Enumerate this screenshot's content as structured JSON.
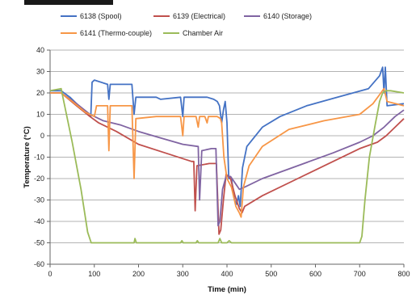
{
  "chart_data": {
    "type": "line",
    "title": "",
    "xlabel": "Time (min)",
    "ylabel": "Temperature (°C)",
    "xlim": [
      0,
      800
    ],
    "ylim": [
      -60,
      40
    ],
    "xticks": [
      0,
      100,
      200,
      300,
      400,
      500,
      600,
      700,
      800
    ],
    "yticks": [
      -60,
      -50,
      -40,
      -30,
      -20,
      -10,
      0,
      10,
      20,
      30,
      40
    ],
    "grid": "horizontal",
    "legend_position": "top",
    "series": [
      {
        "name": "6138 (Spool)",
        "color": "#4472C4",
        "points": [
          [
            0,
            21
          ],
          [
            25,
            21
          ],
          [
            45,
            18
          ],
          [
            70,
            13
          ],
          [
            92,
            9
          ],
          [
            95,
            25
          ],
          [
            100,
            26
          ],
          [
            130,
            24
          ],
          [
            133,
            17
          ],
          [
            136,
            24
          ],
          [
            185,
            24
          ],
          [
            190,
            10
          ],
          [
            194,
            18
          ],
          [
            240,
            18
          ],
          [
            250,
            17
          ],
          [
            295,
            18
          ],
          [
            300,
            9
          ],
          [
            303,
            18
          ],
          [
            355,
            18
          ],
          [
            370,
            17
          ],
          [
            378,
            16
          ],
          [
            383,
            14
          ],
          [
            388,
            6
          ],
          [
            392,
            12
          ],
          [
            396,
            16
          ],
          [
            400,
            6
          ],
          [
            404,
            -20
          ],
          [
            410,
            -20
          ],
          [
            417,
            -30
          ],
          [
            422,
            -32
          ],
          [
            426,
            -28
          ],
          [
            430,
            -33
          ],
          [
            435,
            -15
          ],
          [
            445,
            -5
          ],
          [
            480,
            4
          ],
          [
            520,
            9
          ],
          [
            580,
            14
          ],
          [
            650,
            18
          ],
          [
            720,
            22
          ],
          [
            745,
            28
          ],
          [
            752,
            32
          ],
          [
            755,
            20
          ],
          [
            758,
            32
          ],
          [
            762,
            14
          ],
          [
            800,
            15
          ]
        ]
      },
      {
        "name": "6139 (Electrical)",
        "color": "#C0504D",
        "points": [
          [
            0,
            20
          ],
          [
            25,
            20
          ],
          [
            60,
            14
          ],
          [
            90,
            9
          ],
          [
            110,
            6
          ],
          [
            150,
            2
          ],
          [
            200,
            -4
          ],
          [
            260,
            -8
          ],
          [
            320,
            -12
          ],
          [
            325,
            -12
          ],
          [
            328,
            -35
          ],
          [
            332,
            -14
          ],
          [
            360,
            -13
          ],
          [
            376,
            -13
          ],
          [
            382,
            -46
          ],
          [
            386,
            -44
          ],
          [
            392,
            -30
          ],
          [
            398,
            -18
          ],
          [
            408,
            -20
          ],
          [
            418,
            -28
          ],
          [
            428,
            -34
          ],
          [
            434,
            -36
          ],
          [
            440,
            -33
          ],
          [
            480,
            -28
          ],
          [
            560,
            -20
          ],
          [
            640,
            -12
          ],
          [
            700,
            -6
          ],
          [
            740,
            -3
          ],
          [
            760,
            0
          ],
          [
            780,
            4
          ],
          [
            800,
            8
          ]
        ]
      },
      {
        "name": "6140 (Storage)",
        "color": "#8064A2",
        "points": [
          [
            0,
            20
          ],
          [
            25,
            20
          ],
          [
            60,
            15
          ],
          [
            90,
            10
          ],
          [
            120,
            7
          ],
          [
            160,
            5
          ],
          [
            200,
            2
          ],
          [
            250,
            -1
          ],
          [
            300,
            -4
          ],
          [
            335,
            -5
          ],
          [
            338,
            -30
          ],
          [
            343,
            -7
          ],
          [
            365,
            -6
          ],
          [
            375,
            -6
          ],
          [
            380,
            -42
          ],
          [
            384,
            -40
          ],
          [
            390,
            -25
          ],
          [
            398,
            -19
          ],
          [
            408,
            -19
          ],
          [
            418,
            -22
          ],
          [
            428,
            -25
          ],
          [
            440,
            -24
          ],
          [
            480,
            -20
          ],
          [
            560,
            -14
          ],
          [
            640,
            -8
          ],
          [
            700,
            -3
          ],
          [
            730,
            0
          ],
          [
            755,
            4
          ],
          [
            780,
            9
          ],
          [
            800,
            12
          ]
        ]
      },
      {
        "name": "6141 (Thermo-couple)",
        "color": "#F79646",
        "points": [
          [
            0,
            20
          ],
          [
            25,
            20
          ],
          [
            50,
            16
          ],
          [
            80,
            11
          ],
          [
            100,
            9
          ],
          [
            105,
            14
          ],
          [
            130,
            14
          ],
          [
            133,
            -7
          ],
          [
            136,
            14
          ],
          [
            185,
            14
          ],
          [
            190,
            -20
          ],
          [
            194,
            8
          ],
          [
            240,
            9
          ],
          [
            295,
            9
          ],
          [
            300,
            0
          ],
          [
            303,
            9
          ],
          [
            330,
            9
          ],
          [
            335,
            4
          ],
          [
            338,
            9
          ],
          [
            350,
            9
          ],
          [
            355,
            6
          ],
          [
            358,
            9
          ],
          [
            378,
            9
          ],
          [
            385,
            8
          ],
          [
            388,
            6
          ],
          [
            393,
            -10
          ],
          [
            400,
            -20
          ],
          [
            410,
            -24
          ],
          [
            420,
            -33
          ],
          [
            428,
            -36
          ],
          [
            432,
            -38
          ],
          [
            437,
            -24
          ],
          [
            450,
            -14
          ],
          [
            480,
            -5
          ],
          [
            540,
            3
          ],
          [
            620,
            7
          ],
          [
            700,
            10
          ],
          [
            730,
            15
          ],
          [
            748,
            20
          ],
          [
            755,
            22
          ],
          [
            762,
            16
          ],
          [
            800,
            14
          ]
        ]
      },
      {
        "name": "Chamber Air",
        "color": "#9BBB59",
        "points": [
          [
            0,
            21
          ],
          [
            25,
            22
          ],
          [
            30,
            17
          ],
          [
            50,
            -3
          ],
          [
            70,
            -25
          ],
          [
            85,
            -45
          ],
          [
            93,
            -50
          ],
          [
            120,
            -50
          ],
          [
            190,
            -50
          ],
          [
            192,
            -48
          ],
          [
            195,
            -50
          ],
          [
            295,
            -50
          ],
          [
            298,
            -49
          ],
          [
            301,
            -50
          ],
          [
            330,
            -50
          ],
          [
            333,
            -49
          ],
          [
            336,
            -50
          ],
          [
            380,
            -50
          ],
          [
            384,
            -48
          ],
          [
            388,
            -50
          ],
          [
            400,
            -50
          ],
          [
            405,
            -49
          ],
          [
            410,
            -50
          ],
          [
            700,
            -50
          ],
          [
            705,
            -47
          ],
          [
            712,
            -30
          ],
          [
            722,
            -10
          ],
          [
            735,
            5
          ],
          [
            745,
            16
          ],
          [
            752,
            20
          ],
          [
            760,
            21
          ],
          [
            770,
            21
          ],
          [
            800,
            20
          ]
        ]
      }
    ]
  }
}
